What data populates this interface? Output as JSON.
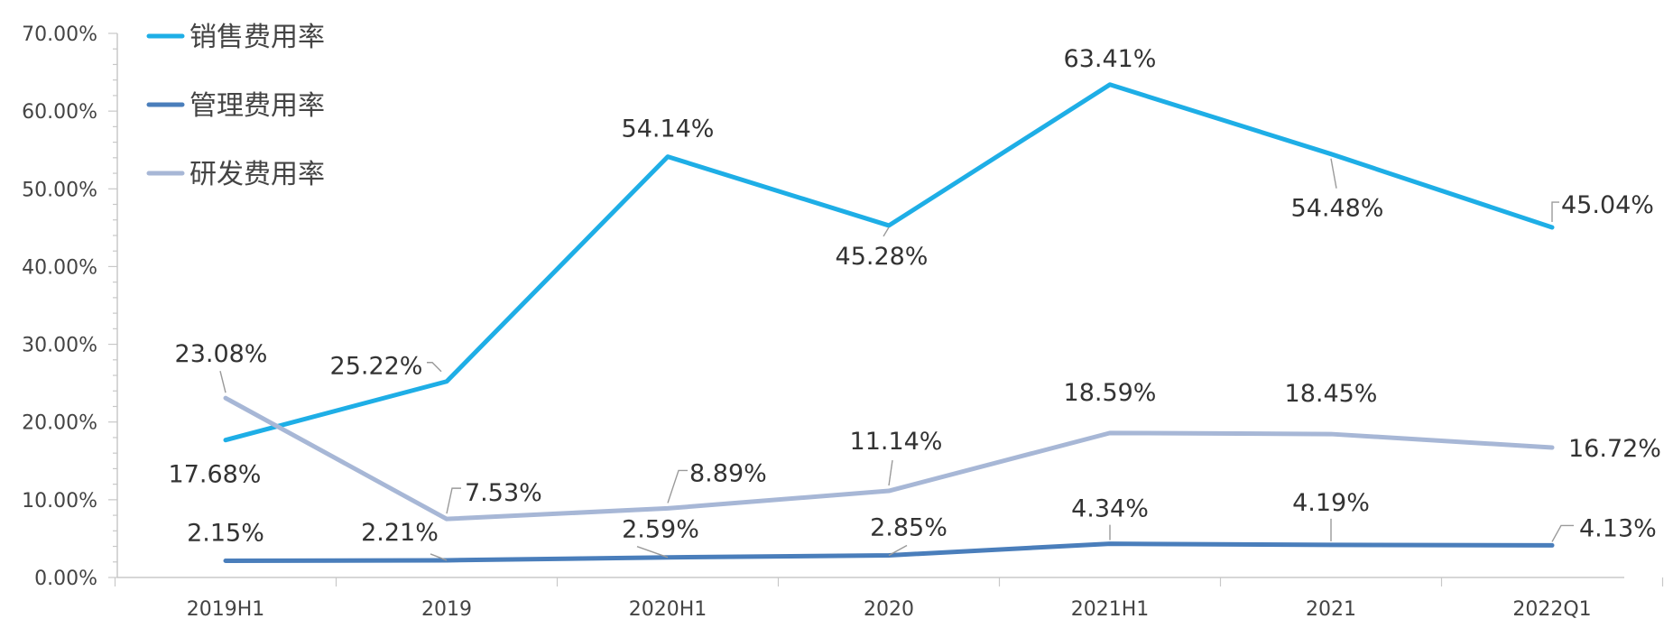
{
  "chart_data": {
    "type": "line",
    "categories": [
      "2019H1",
      "2019",
      "2020H1",
      "2020",
      "2021H1",
      "2021",
      "2022Q1"
    ],
    "ylim": [
      0,
      70
    ],
    "yticks": [
      "0.00%",
      "10.00%",
      "20.00%",
      "30.00%",
      "40.00%",
      "50.00%",
      "60.00%",
      "70.00%"
    ],
    "ytick_values": [
      0,
      10,
      20,
      30,
      40,
      50,
      60,
      70
    ],
    "grid": false,
    "legend_position": "top-left",
    "series": [
      {
        "name": "销售费用率",
        "color": "#1EAEE6",
        "values": [
          17.68,
          25.22,
          54.14,
          45.28,
          63.41,
          54.48,
          45.04
        ],
        "labels": [
          "17.68%",
          "25.22%",
          "54.14%",
          "45.28%",
          "63.41%",
          "54.48%",
          "45.04%"
        ]
      },
      {
        "name": "管理费用率",
        "color": "#4A7EBB",
        "values": [
          2.15,
          2.21,
          2.59,
          2.85,
          4.34,
          4.19,
          4.13
        ],
        "labels": [
          "2.15%",
          "2.21%",
          "2.59%",
          "2.85%",
          "4.34%",
          "4.19%",
          "4.13%"
        ]
      },
      {
        "name": "研发费用率",
        "color": "#A7B7D6",
        "values": [
          23.08,
          7.53,
          8.89,
          11.14,
          18.59,
          18.45,
          16.72
        ],
        "labels": [
          "23.08%",
          "7.53%",
          "8.89%",
          "11.14%",
          "18.59%",
          "18.45%",
          "16.72%"
        ]
      }
    ]
  }
}
